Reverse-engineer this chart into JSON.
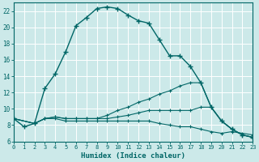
{
  "xlabel": "Humidex (Indice chaleur)",
  "bg_color": "#cce9e9",
  "line_color": "#006666",
  "grid_color": "#b8d8d8",
  "xlim": [
    0,
    23
  ],
  "ylim": [
    6,
    23
  ],
  "yticks": [
    6,
    8,
    10,
    12,
    14,
    16,
    18,
    20,
    22
  ],
  "xticks": [
    0,
    1,
    2,
    3,
    4,
    5,
    6,
    7,
    8,
    9,
    10,
    11,
    12,
    13,
    14,
    15,
    16,
    17,
    18,
    19,
    20,
    21,
    22,
    23
  ],
  "line1_x": [
    0,
    1,
    2,
    3,
    4,
    5,
    6,
    7,
    8,
    9,
    10,
    11,
    12,
    13,
    14,
    15,
    16,
    17,
    18,
    19,
    20,
    21,
    22,
    23
  ],
  "line1_y": [
    8.8,
    7.8,
    8.2,
    12.5,
    14.3,
    17.0,
    20.2,
    21.2,
    22.3,
    22.5,
    22.3,
    21.5,
    20.8,
    20.5,
    18.5,
    16.5,
    16.5,
    15.2,
    13.2,
    10.2,
    8.5,
    7.5,
    6.8,
    6.5
  ],
  "line2_x": [
    0,
    2,
    3,
    4,
    5,
    6,
    7,
    8,
    9,
    10,
    11,
    12,
    13,
    14,
    15,
    16,
    17,
    18,
    19,
    20,
    21,
    22,
    23
  ],
  "line2_y": [
    8.8,
    8.2,
    8.8,
    9.0,
    8.8,
    8.8,
    8.8,
    8.8,
    9.2,
    9.8,
    10.2,
    10.8,
    11.2,
    11.8,
    12.2,
    12.8,
    13.2,
    13.2,
    10.2,
    8.5,
    7.5,
    6.8,
    6.5
  ],
  "line3_x": [
    0,
    2,
    3,
    4,
    5,
    6,
    7,
    8,
    9,
    10,
    11,
    12,
    13,
    14,
    15,
    16,
    17,
    18,
    19,
    20,
    21,
    22,
    23
  ],
  "line3_y": [
    8.8,
    8.2,
    8.8,
    9.0,
    8.8,
    8.8,
    8.8,
    8.8,
    8.8,
    9.0,
    9.2,
    9.5,
    9.8,
    9.8,
    9.8,
    9.8,
    9.8,
    10.2,
    10.2,
    8.5,
    7.5,
    6.8,
    6.5
  ],
  "line4_x": [
    0,
    2,
    3,
    4,
    5,
    6,
    7,
    8,
    9,
    10,
    11,
    12,
    13,
    14,
    15,
    16,
    17,
    18,
    19,
    20,
    21,
    22,
    23
  ],
  "line4_y": [
    8.8,
    8.2,
    8.8,
    8.8,
    8.5,
    8.5,
    8.5,
    8.5,
    8.5,
    8.5,
    8.5,
    8.5,
    8.5,
    8.2,
    8.0,
    7.8,
    7.8,
    7.5,
    7.2,
    7.0,
    7.2,
    7.0,
    6.8
  ]
}
